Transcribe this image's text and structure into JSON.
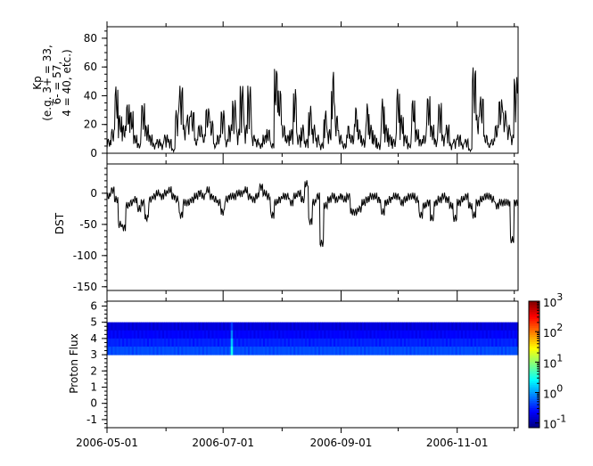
{
  "chart_data": [
    {
      "type": "line",
      "ylabel_lines": [
        "Kp",
        "(e.g. 3+ = 33,",
        "6- = 57,",
        "4 = 40, etc.)"
      ],
      "ylim": [
        0,
        88
      ],
      "yticks": [
        "0",
        "20",
        "40",
        "60",
        "80"
      ],
      "x_start": "2006-05-01",
      "x_step_days": 2,
      "values": [
        10,
        17,
        47,
        27,
        20,
        35,
        30,
        13,
        7,
        35,
        20,
        13,
        7,
        10,
        7,
        13,
        10,
        3,
        30,
        47,
        20,
        27,
        30,
        10,
        20,
        13,
        32,
        23,
        7,
        13,
        30,
        10,
        20,
        37,
        17,
        47,
        20,
        47,
        13,
        10,
        7,
        13,
        17,
        7,
        60,
        45,
        20,
        13,
        17,
        45,
        13,
        20,
        10,
        33,
        20,
        13,
        7,
        30,
        17,
        58,
        27,
        13,
        7,
        20,
        13,
        33,
        17,
        10,
        35,
        20,
        13,
        7,
        38,
        20,
        13,
        10,
        45,
        27,
        13,
        7,
        38,
        17,
        10,
        13,
        40,
        20,
        10,
        35,
        13,
        20,
        7,
        10,
        13,
        7,
        10,
        3,
        60,
        27,
        40,
        13,
        7,
        10,
        20,
        38,
        30,
        20,
        13,
        53
      ]
    },
    {
      "type": "line",
      "ylabel": "DST",
      "ylim": [
        -156,
        47
      ],
      "yticks": [
        "0",
        "-50",
        "-100",
        "-150"
      ],
      "x_start": "2006-05-01",
      "x_step_days": 2,
      "values": [
        -5,
        5,
        -10,
        -50,
        -55,
        -20,
        -15,
        -10,
        -25,
        -15,
        -40,
        -10,
        -5,
        0,
        -5,
        0,
        5,
        -5,
        -10,
        -35,
        -15,
        -15,
        -10,
        -5,
        0,
        -5,
        5,
        -5,
        -10,
        -15,
        -30,
        -10,
        -5,
        -5,
        0,
        0,
        5,
        -5,
        -10,
        -5,
        10,
        0,
        -5,
        -35,
        -15,
        -10,
        -5,
        -5,
        -15,
        -5,
        0,
        -10,
        15,
        -45,
        -15,
        -5,
        -80,
        -20,
        -10,
        -5,
        -10,
        -5,
        -10,
        -5,
        -30,
        -30,
        -25,
        -15,
        -10,
        -5,
        -5,
        -10,
        -30,
        -15,
        -10,
        -5,
        -5,
        -15,
        -10,
        -5,
        -5,
        -10,
        -35,
        -20,
        -15,
        -40,
        -15,
        -10,
        -5,
        -10,
        -20,
        -40,
        -15,
        -10,
        -5,
        -20,
        -35,
        -15,
        -10,
        -5,
        -5,
        -10,
        -20,
        -15,
        -15,
        -15,
        -75,
        -15
      ]
    },
    {
      "type": "heatmap",
      "ylabel": "Proton Flux",
      "ylim": [
        -1.5,
        6.3
      ],
      "yticks": [
        "-1",
        "0",
        "1",
        "2",
        "3",
        "4",
        "5",
        "6"
      ],
      "band_y": [
        3,
        5
      ],
      "row_values": [
        0.45,
        0.3,
        0.22,
        0.16
      ],
      "event": {
        "date": "2006-07-05",
        "values": [
          3,
          1.5,
          0.8,
          0.4
        ]
      },
      "colorbar": {
        "scale": "log",
        "range": [
          0.07,
          1000
        ],
        "ticks": [
          {
            "base": "10",
            "exp": "3"
          },
          {
            "base": "10",
            "exp": "2"
          },
          {
            "base": "10",
            "exp": "1"
          },
          {
            "base": "10",
            "exp": "0"
          },
          {
            "base": "10",
            "exp": "-1"
          }
        ]
      }
    }
  ],
  "xaxis": {
    "range": [
      "2006-05-01",
      "2006-12-03"
    ],
    "ticks": [
      "2006-05-01",
      "2006-07-01",
      "2006-09-01",
      "2006-11-01"
    ],
    "minor_ticks": [
      "2006-06-01",
      "2006-08-01",
      "2006-10-01",
      "2006-12-01"
    ]
  }
}
